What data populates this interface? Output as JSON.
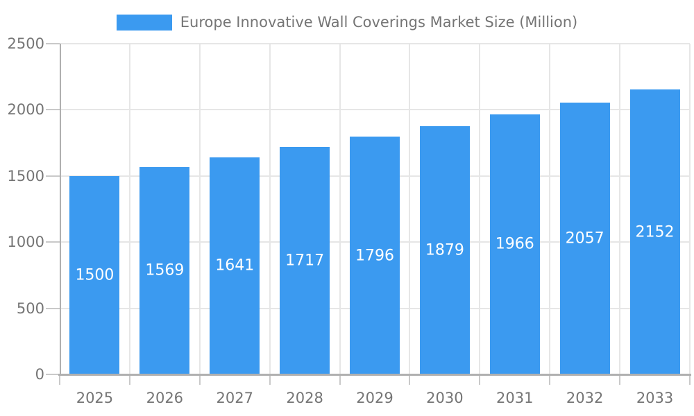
{
  "legend": {
    "label": "Europe Innovative Wall Coverings Market Size (Million)"
  },
  "chart_data": {
    "type": "bar",
    "title": "Europe Innovative Wall Coverings Market Size (Million)",
    "categories": [
      "2025",
      "2026",
      "2027",
      "2028",
      "2029",
      "2030",
      "2031",
      "2032",
      "2033"
    ],
    "values": [
      1500,
      1569,
      1641,
      1717,
      1796,
      1879,
      1966,
      2057,
      2152
    ],
    "xlabel": "",
    "ylabel": "",
    "ylim": [
      0,
      2500
    ],
    "yticks": [
      0,
      500,
      1000,
      1500,
      2000,
      2500
    ],
    "grid": true,
    "legend_position": "top",
    "value_labels_inside_bars": true,
    "colors": {
      "bar": "#3b9af0",
      "value_label": "#ffffff",
      "axis_text": "#757575",
      "legend_text": "#757575",
      "gridline": "#e6e6e6",
      "axis_line": "#b0b0b0",
      "tick": "#c9c9c9",
      "background": "#ffffff"
    }
  }
}
